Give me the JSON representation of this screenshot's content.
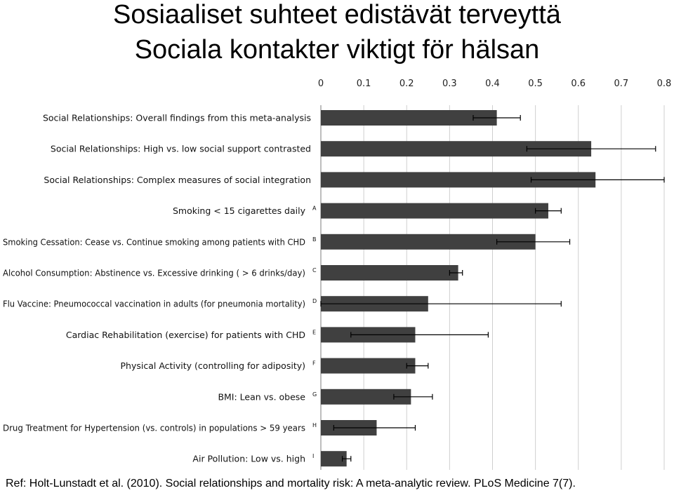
{
  "title_line1": "Sosiaaliset suhteet edistävät terveyttä",
  "title_line2": "Sociala kontakter viktigt för hälsan",
  "reference": "Ref: Holt-Lunstadt et al. (2010). Social relationships and mortality risk: A meta-analytic review. PLoS Medicine 7(7).",
  "colors": {
    "bar": "#404040",
    "grid": "#cfcfcf",
    "errorbar": "#000000"
  },
  "chart_data": {
    "type": "bar",
    "orientation": "horizontal",
    "xlim": [
      0,
      0.8
    ],
    "x_ticks": [
      "0",
      "0.1",
      "0.2",
      "0.3",
      "0.4",
      "0.5",
      "0.6",
      "0.7",
      "0.8"
    ],
    "x_axis_position": "top",
    "grid": true,
    "categories": [
      {
        "label": "Social Relationships: Overall findings from this meta-analysis",
        "sup": "",
        "value": 0.41,
        "err": [
          0.355,
          0.465
        ]
      },
      {
        "label": "Social Relationships: High vs. low social support contrasted",
        "sup": "",
        "value": 0.63,
        "err": [
          0.48,
          0.78
        ]
      },
      {
        "label": "Social Relationships: Complex measures of social integration",
        "sup": "",
        "value": 0.64,
        "err": [
          0.49,
          0.8
        ]
      },
      {
        "label": "Smoking < 15 cigarettes daily",
        "sup": "A",
        "value": 0.53,
        "err": [
          0.5,
          0.56
        ]
      },
      {
        "label": "Smoking Cessation: Cease vs. Continue smoking among patients with CHD",
        "sup": "B",
        "value": 0.5,
        "err": [
          0.41,
          0.58
        ]
      },
      {
        "label": "Alcohol Consumption: Abstinence vs. Excessive drinking ( > 6 drinks/day)",
        "sup": "C",
        "value": 0.32,
        "err": [
          0.3,
          0.33
        ]
      },
      {
        "label": "Flu Vaccine: Pneumococcal vaccination in adults (for pneumonia mortality)",
        "sup": "D",
        "value": 0.25,
        "err": [
          0.0,
          0.56
        ]
      },
      {
        "label": "Cardiac Rehabilitation (exercise) for patients with CHD",
        "sup": "E",
        "value": 0.22,
        "err": [
          0.07,
          0.39
        ]
      },
      {
        "label": "Physical Activity (controlling for adiposity)",
        "sup": "F",
        "value": 0.22,
        "err": [
          0.2,
          0.25
        ]
      },
      {
        "label": "BMI: Lean vs. obese",
        "sup": "G",
        "value": 0.21,
        "err": [
          0.17,
          0.26
        ]
      },
      {
        "label": "Drug Treatment for Hypertension (vs. controls) in populations > 59 years",
        "sup": "H",
        "value": 0.13,
        "err": [
          0.03,
          0.22
        ]
      },
      {
        "label": "Air Pollution: Low vs. high",
        "sup": "I",
        "value": 0.06,
        "err": [
          0.05,
          0.07
        ]
      }
    ]
  }
}
